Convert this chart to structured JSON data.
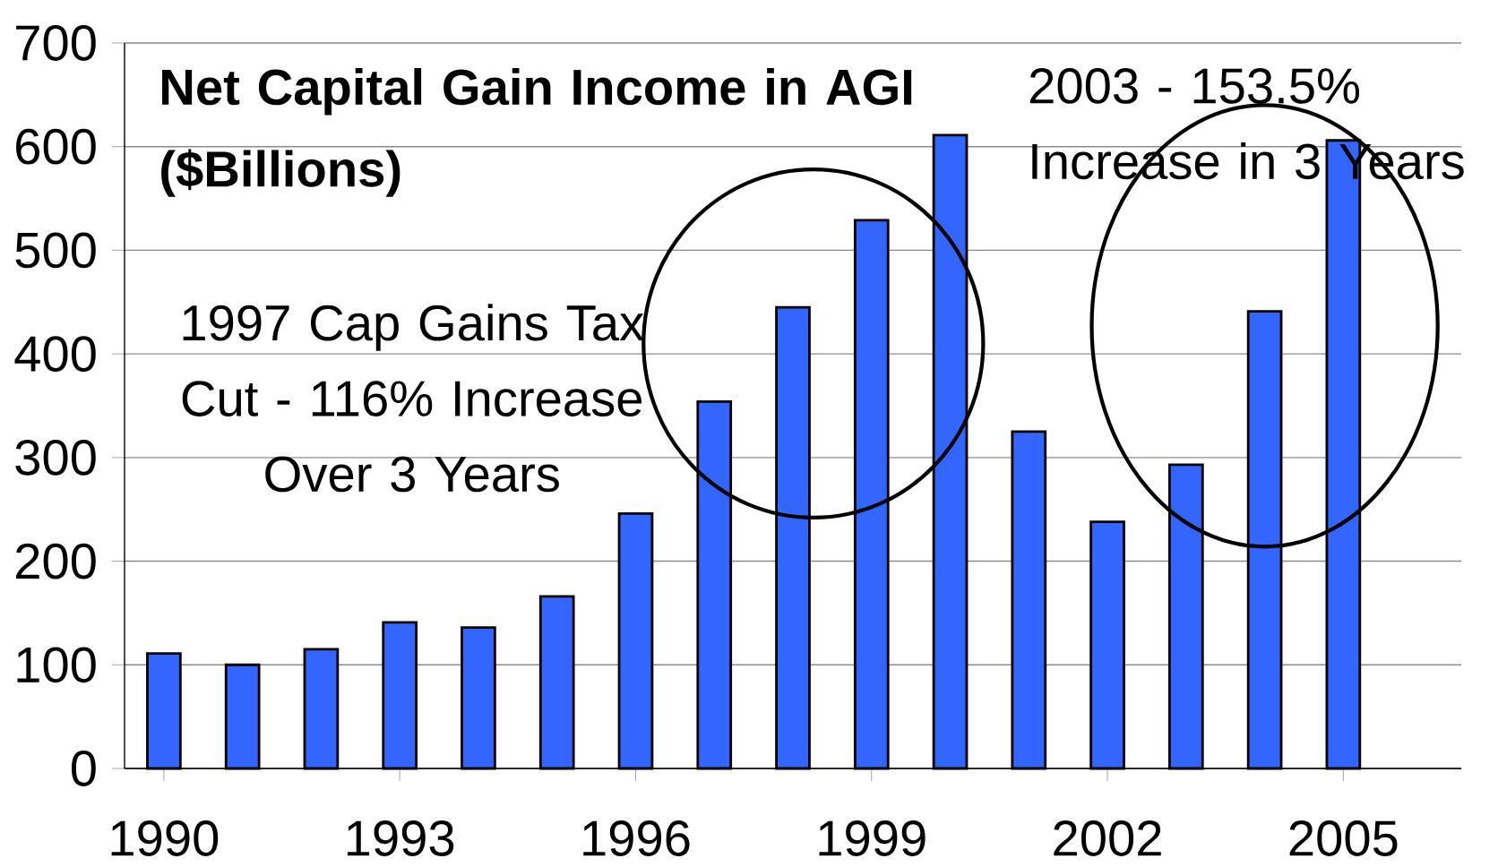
{
  "chart_data": {
    "type": "bar",
    "title": "Net Capital Gain Income in AGI ($Billions)",
    "x": [
      1990,
      1991,
      1992,
      1993,
      1994,
      1995,
      1996,
      1997,
      1998,
      1999,
      2000,
      2001,
      2002,
      2003,
      2004,
      2005
    ],
    "values": [
      111,
      100,
      115,
      141,
      136,
      166,
      246,
      354,
      445,
      529,
      611,
      325,
      238,
      293,
      441,
      606
    ],
    "color": "#3366ff",
    "xlim": [
      1989.5,
      2006.5
    ],
    "ylim": [
      0,
      700
    ],
    "xticks": [
      1990,
      1993,
      1996,
      1999,
      2002,
      2005
    ],
    "yticks": [
      0,
      100,
      200,
      300,
      400,
      500,
      600,
      700
    ],
    "grid": "y",
    "annotations": [
      "1997 Cap Gains Tax Cut - 116% Increase Over 3 Years",
      "2003 - 153.5% Increase in 3 Years"
    ]
  }
}
